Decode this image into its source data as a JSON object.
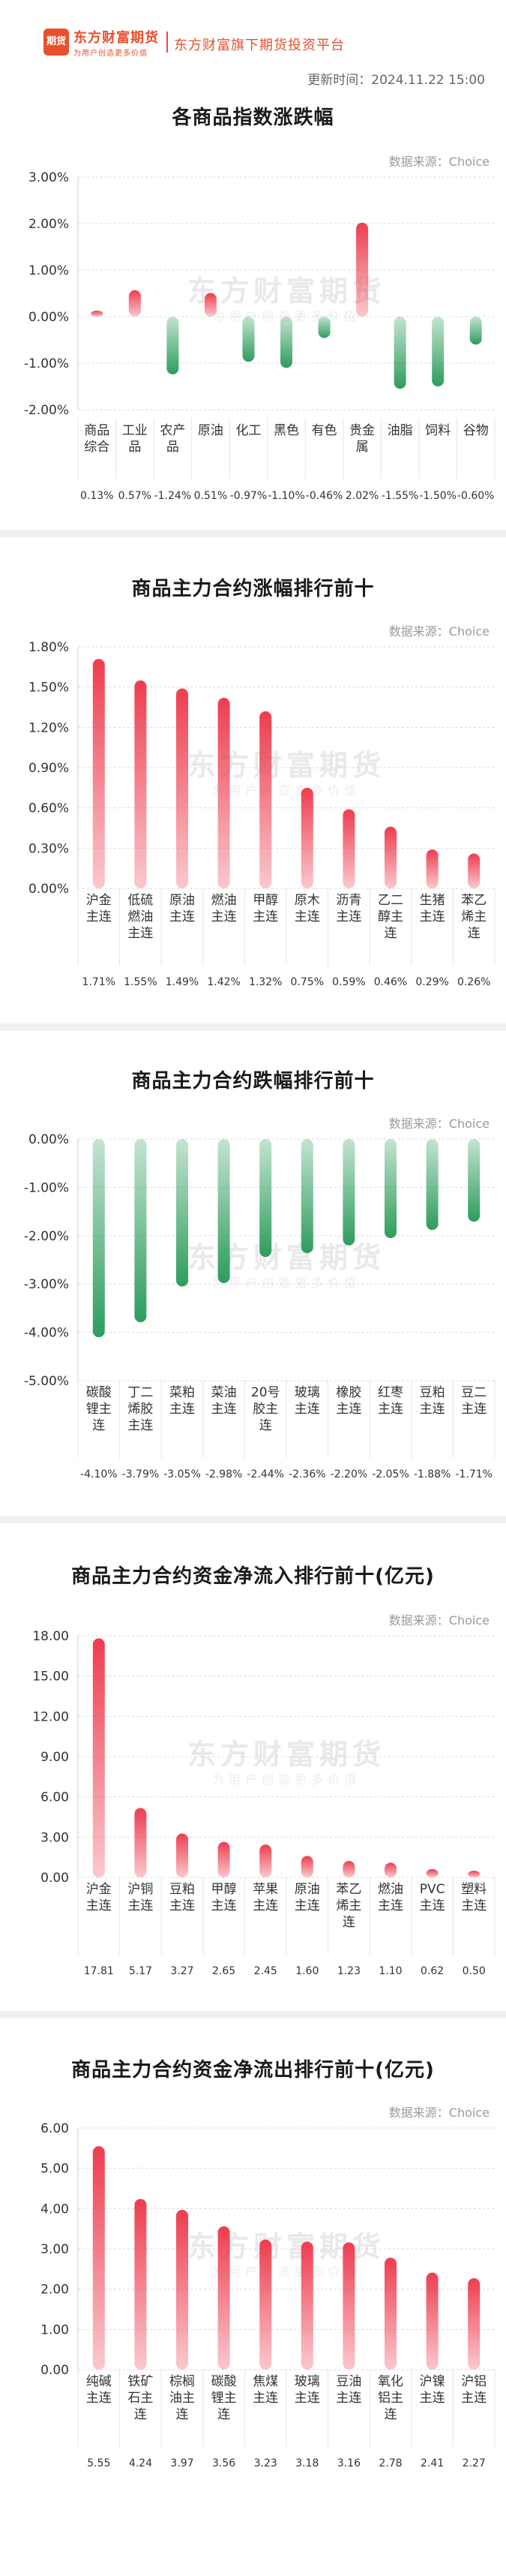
{
  "header": {
    "logo_badge": "期货",
    "logo_name": "东方财富期货",
    "logo_slogan": "为用户创造更多价值",
    "platform_title": "东方财富旗下期货投资平台",
    "update_time": "更新时间：2024.11.22 15:00"
  },
  "watermark": {
    "name": "东方财富期货",
    "slogan": "为用户创造更多价值"
  },
  "colors": {
    "up": "#ee3d4f",
    "down": "#2d9d5c",
    "grid": "#d9d9d9"
  },
  "chart_data": [
    {
      "type": "bar",
      "title": "各商品指数涨跌幅",
      "source": "数据来源：Choice",
      "ylim": [
        -2,
        3
      ],
      "yticks": [
        "3.00%",
        "2.00%",
        "1.00%",
        "0.00%",
        "-1.00%",
        "-2.00%"
      ],
      "ytick_values": [
        3,
        2,
        1,
        0,
        -1,
        -2
      ],
      "categories": [
        [
          "商品",
          "综合"
        ],
        [
          "工业",
          "品"
        ],
        [
          "农产",
          "品"
        ],
        [
          "原油"
        ],
        [
          "化工"
        ],
        [
          "黑色"
        ],
        [
          "有色"
        ],
        [
          "贵金",
          "属"
        ],
        [
          "油脂"
        ],
        [
          "饲料"
        ],
        [
          "谷物"
        ]
      ],
      "values": [
        0.13,
        0.57,
        -1.24,
        0.51,
        -0.97,
        -1.1,
        -0.46,
        2.02,
        -1.55,
        -1.5,
        -0.6
      ],
      "value_labels": [
        "0.13%",
        "0.57%",
        "-1.24%",
        "0.51%",
        "-0.97%",
        "-1.10%",
        "-0.46%",
        "2.02%",
        "-1.55%",
        "-1.50%",
        "-0.60%"
      ],
      "grid": true
    },
    {
      "type": "bar",
      "title": "商品主力合约涨幅排行前十",
      "source": "数据来源：Choice",
      "ylim": [
        0,
        1.8
      ],
      "yticks": [
        "1.80%",
        "1.50%",
        "1.20%",
        "0.90%",
        "0.60%",
        "0.30%",
        "0.00%"
      ],
      "ytick_values": [
        1.8,
        1.5,
        1.2,
        0.9,
        0.6,
        0.3,
        0
      ],
      "categories": [
        [
          "沪金",
          "主连"
        ],
        [
          "低硫",
          "燃油",
          "主连"
        ],
        [
          "原油",
          "主连"
        ],
        [
          "燃油",
          "主连"
        ],
        [
          "甲醇",
          "主连"
        ],
        [
          "原木",
          "主连"
        ],
        [
          "沥青",
          "主连"
        ],
        [
          "乙二",
          "醇主",
          "连"
        ],
        [
          "生猪",
          "主连"
        ],
        [
          "苯乙",
          "烯主",
          "连"
        ]
      ],
      "values": [
        1.71,
        1.55,
        1.49,
        1.42,
        1.32,
        0.75,
        0.59,
        0.46,
        0.29,
        0.26
      ],
      "value_labels": [
        "1.71%",
        "1.55%",
        "1.49%",
        "1.42%",
        "1.32%",
        "0.75%",
        "0.59%",
        "0.46%",
        "0.29%",
        "0.26%"
      ],
      "grid": true
    },
    {
      "type": "bar",
      "title": "商品主力合约跌幅排行前十",
      "source": "数据来源：Choice",
      "ylim": [
        -5,
        0
      ],
      "yticks": [
        "0.00%",
        "-1.00%",
        "-2.00%",
        "-3.00%",
        "-4.00%",
        "-5.00%"
      ],
      "ytick_values": [
        0,
        -1,
        -2,
        -3,
        -4,
        -5
      ],
      "categories": [
        [
          "碳酸",
          "锂主",
          "连"
        ],
        [
          "丁二",
          "烯胶",
          "主连"
        ],
        [
          "菜粕",
          "主连"
        ],
        [
          "菜油",
          "主连"
        ],
        [
          "20号",
          "胶主",
          "连"
        ],
        [
          "玻璃",
          "主连"
        ],
        [
          "橡胶",
          "主连"
        ],
        [
          "红枣",
          "主连"
        ],
        [
          "豆粕",
          "主连"
        ],
        [
          "豆二",
          "主连"
        ]
      ],
      "values": [
        -4.1,
        -3.79,
        -3.05,
        -2.98,
        -2.44,
        -2.36,
        -2.2,
        -2.05,
        -1.88,
        -1.71
      ],
      "value_labels": [
        "-4.10%",
        "-3.79%",
        "-3.05%",
        "-2.98%",
        "-2.44%",
        "-2.36%",
        "-2.20%",
        "-2.05%",
        "-1.88%",
        "-1.71%"
      ],
      "grid": true
    },
    {
      "type": "bar",
      "title": "商品主力合约资金净流入排行前十(亿元)",
      "source": "数据来源：Choice",
      "ylim": [
        0,
        18
      ],
      "yticks": [
        "18.00",
        "15.00",
        "12.00",
        "9.00",
        "6.00",
        "3.00",
        "0.00"
      ],
      "ytick_values": [
        18,
        15,
        12,
        9,
        6,
        3,
        0
      ],
      "categories": [
        [
          "沪金",
          "主连"
        ],
        [
          "沪铜",
          "主连"
        ],
        [
          "豆粕",
          "主连"
        ],
        [
          "甲醇",
          "主连"
        ],
        [
          "苹果",
          "主连"
        ],
        [
          "原油",
          "主连"
        ],
        [
          "苯乙",
          "烯主",
          "连"
        ],
        [
          "燃油",
          "主连"
        ],
        [
          "PVC",
          "主连"
        ],
        [
          "塑料",
          "主连"
        ]
      ],
      "values": [
        17.81,
        5.17,
        3.27,
        2.65,
        2.45,
        1.6,
        1.23,
        1.1,
        0.62,
        0.5
      ],
      "value_labels": [
        "17.81",
        "5.17",
        "3.27",
        "2.65",
        "2.45",
        "1.60",
        "1.23",
        "1.10",
        "0.62",
        "0.50"
      ],
      "grid": true
    },
    {
      "type": "bar",
      "title": "商品主力合约资金净流出排行前十(亿元)",
      "source": "数据来源：Choice",
      "ylim": [
        0,
        6
      ],
      "yticks": [
        "6.00",
        "5.00",
        "4.00",
        "3.00",
        "2.00",
        "1.00",
        "0.00"
      ],
      "ytick_values": [
        6,
        5,
        4,
        3,
        2,
        1,
        0
      ],
      "categories": [
        [
          "纯碱",
          "主连"
        ],
        [
          "铁矿",
          "石主",
          "连"
        ],
        [
          "棕榈",
          "油主",
          "连"
        ],
        [
          "碳酸",
          "锂主",
          "连"
        ],
        [
          "焦煤",
          "主连"
        ],
        [
          "玻璃",
          "主连"
        ],
        [
          "豆油",
          "主连"
        ],
        [
          "氧化",
          "铝主",
          "连"
        ],
        [
          "沪镍",
          "主连"
        ],
        [
          "沪铝",
          "主连"
        ]
      ],
      "values": [
        5.55,
        4.24,
        3.97,
        3.56,
        3.23,
        3.18,
        3.16,
        2.78,
        2.41,
        2.27
      ],
      "value_labels": [
        "5.55",
        "4.24",
        "3.97",
        "3.56",
        "3.23",
        "3.18",
        "3.16",
        "2.78",
        "2.41",
        "2.27"
      ],
      "grid": true
    }
  ]
}
